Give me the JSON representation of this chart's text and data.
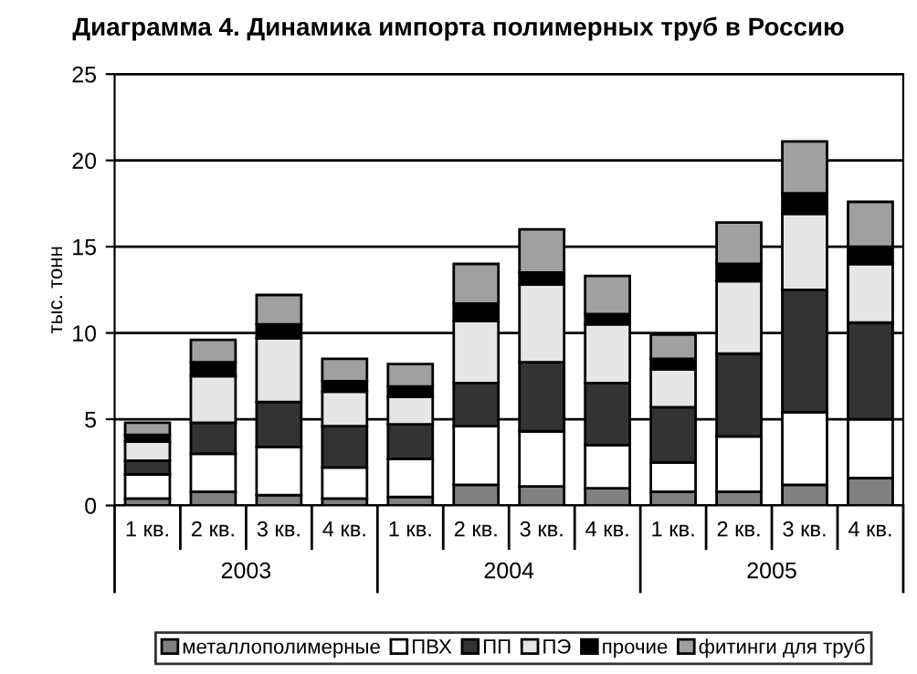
{
  "chart_data": {
    "type": "bar",
    "stacked": true,
    "title": "Диаграмма 4. Динамика импорта полимерных труб в Россию",
    "ylabel": "тыс. тонн",
    "categories": [
      "1 кв.",
      "2 кв.",
      "3 кв.",
      "4 кв.",
      "1 кв.",
      "2 кв.",
      "3 кв.",
      "4 кв.",
      "1 кв.",
      "2 кв.",
      "3 кв.",
      "4 кв."
    ],
    "annotations": [
      "2003",
      "2004",
      "2005"
    ],
    "series": [
      {
        "name": "металлополимерные",
        "color": "#808080",
        "values": [
          0.4,
          0.8,
          0.6,
          0.4,
          0.5,
          1.2,
          1.1,
          1.0,
          0.8,
          0.8,
          1.2,
          1.6
        ]
      },
      {
        "name": "ПВХ",
        "color": "#ffffff",
        "values": [
          1.4,
          2.2,
          2.8,
          1.8,
          2.2,
          3.4,
          3.2,
          2.5,
          1.7,
          3.2,
          4.2,
          3.4
        ]
      },
      {
        "name": "ПП",
        "color": "#333333",
        "values": [
          0.8,
          1.8,
          2.6,
          2.4,
          2.0,
          2.5,
          4.0,
          3.6,
          3.2,
          4.8,
          7.1,
          5.6
        ]
      },
      {
        "name": "ПЭ",
        "color": "#e6e6e6",
        "values": [
          1.1,
          2.7,
          3.7,
          2.0,
          1.6,
          3.6,
          4.5,
          3.4,
          2.2,
          4.2,
          4.4,
          3.4
        ]
      },
      {
        "name": "прочие",
        "color": "#000000",
        "values": [
          0.4,
          0.8,
          0.8,
          0.6,
          0.6,
          1.0,
          0.7,
          0.6,
          0.6,
          1.0,
          1.2,
          1.0
        ]
      },
      {
        "name": "фитинги для труб",
        "color": "#a0a0a0",
        "values": [
          0.7,
          1.3,
          1.7,
          1.3,
          1.3,
          2.3,
          2.5,
          2.2,
          1.4,
          2.4,
          3.0,
          2.6
        ]
      }
    ],
    "ylim": [
      0,
      25
    ],
    "yticks": [
      0,
      5,
      10,
      15,
      20,
      25
    ],
    "grid": "y",
    "legend": "bottom"
  }
}
